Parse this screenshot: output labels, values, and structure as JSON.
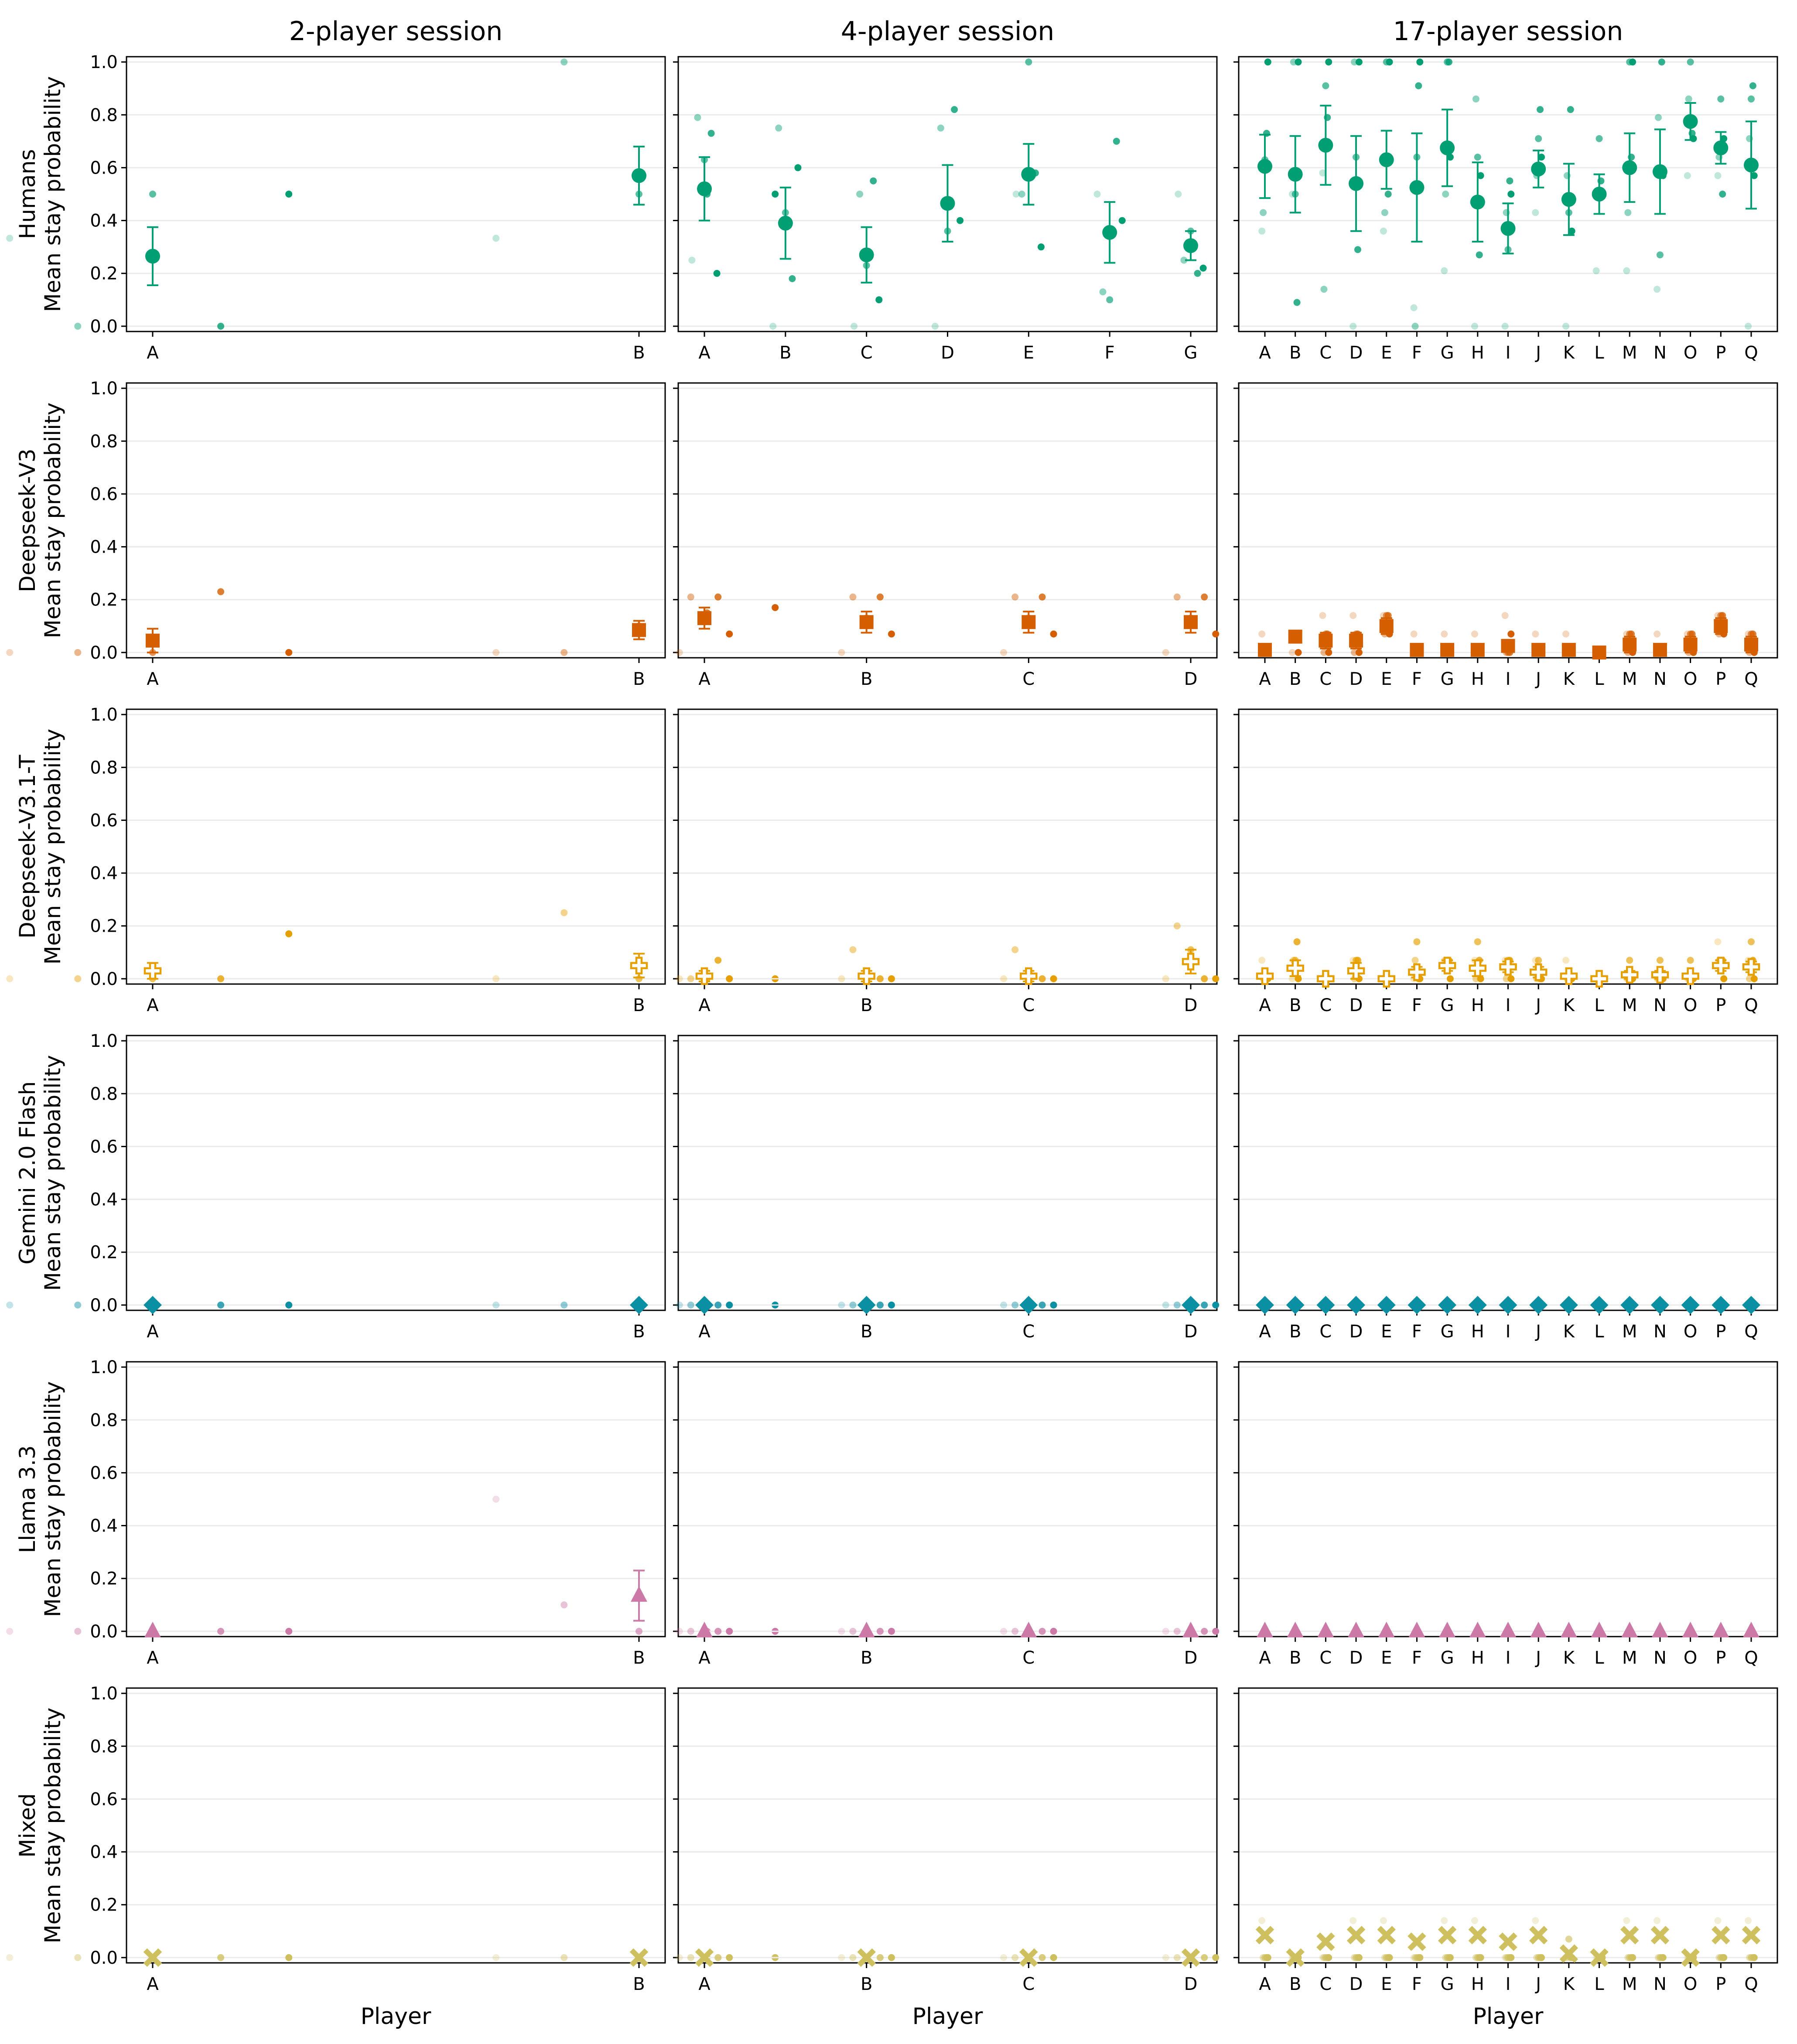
{
  "colors": {
    "Humans": "#009e73",
    "Deepseek-V3": "#d55e00",
    "Deepseek-V3.1-T": "#e69f00",
    "Gemini 2.0 Flash": "#0a8fa3",
    "Llama 3.3": "#cc79a7",
    "Mixed": "#cfc05f",
    "grid": "#ebebeb"
  },
  "chart_data": {
    "type": "scatter",
    "column_titles": [
      "2-player session",
      "4-player session",
      "17-player session"
    ],
    "row_titles": [
      "Humans",
      "Deepseek-V3",
      "Deepseek-V3.1-T",
      "Gemini 2.0 Flash",
      "Llama 3.3",
      "Mixed"
    ],
    "ylabel": "Mean stay probability",
    "xlabel": "Player",
    "ylim": [
      -0.02,
      1.02
    ],
    "yticks": [
      "0.0",
      "0.2",
      "0.4",
      "0.6",
      "0.8",
      "1.0"
    ],
    "grid": "horizontal",
    "markers": {
      "Humans": "circle",
      "Deepseek-V3": "square",
      "Deepseek-V3.1-T": "plus",
      "Gemini 2.0 Flash": "diamond",
      "Llama 3.3": "triangle",
      "Mixed": "x"
    },
    "players": [
      [
        "A",
        "B"
      ],
      [
        "A",
        "B",
        "C",
        "D",
        "E",
        "F",
        "G"
      ],
      [
        "A",
        "B",
        "C",
        "D",
        "E",
        "F",
        "G",
        "H",
        "I",
        "J",
        "K",
        "L",
        "M",
        "N",
        "O",
        "P",
        "Q"
      ]
    ],
    "players_llm": [
      [
        "A",
        "B"
      ],
      [
        "A",
        "B",
        "C",
        "D"
      ],
      [
        "A",
        "B",
        "C",
        "D",
        "E",
        "F",
        "G",
        "H",
        "I",
        "J",
        "K",
        "L",
        "M",
        "N",
        "O",
        "P",
        "Q"
      ]
    ],
    "mean": {
      "Humans": [
        [
          0.265,
          0.57
        ],
        [
          0.52,
          0.39,
          0.27,
          0.465,
          0.575,
          0.355,
          0.305
        ],
        [
          0.605,
          0.575,
          0.685,
          0.54,
          0.63,
          0.525,
          0.675,
          0.47,
          0.37,
          0.595,
          0.48,
          0.5,
          0.6,
          0.585,
          0.775,
          0.675,
          0.61
        ]
      ],
      "Deepseek-V3": [
        [
          0.045,
          0.085
        ],
        [
          0.13,
          0.115,
          0.115,
          0.115
        ],
        [
          0.01,
          0.06,
          0.045,
          0.045,
          0.1,
          0.01,
          0.01,
          0.01,
          0.025,
          0.01,
          0.01,
          0.0,
          0.03,
          0.01,
          0.03,
          0.1,
          0.03
        ]
      ],
      "Deepseek-V3.1-T": [
        [
          0.03,
          0.05
        ],
        [
          0.01,
          0.01,
          0.01,
          0.065
        ],
        [
          0.01,
          0.04,
          0.0,
          0.03,
          0.0,
          0.025,
          0.05,
          0.04,
          0.045,
          0.025,
          0.01,
          0.0,
          0.015,
          0.015,
          0.01,
          0.05,
          0.045
        ]
      ],
      "Gemini 2.0 Flash": [
        [
          0.0,
          0.0
        ],
        [
          0.0,
          0.0,
          0.0,
          0.0
        ],
        [
          0.0,
          0.0,
          0.0,
          0.0,
          0.0,
          0.0,
          0.0,
          0.0,
          0.0,
          0.0,
          0.0,
          0.0,
          0.0,
          0.0,
          0.0,
          0.0,
          0.0
        ]
      ],
      "Llama 3.3": [
        [
          0.0,
          0.135
        ],
        [
          0.0,
          0.0,
          0.0,
          0.0
        ],
        [
          0.0,
          0.0,
          0.0,
          0.0,
          0.0,
          0.0,
          0.0,
          0.0,
          0.0,
          0.0,
          0.0,
          0.0,
          0.0,
          0.0,
          0.0,
          0.0,
          0.0
        ]
      ],
      "Mixed": [
        [
          0.0,
          0.0
        ],
        [
          0.0,
          0.0,
          0.0,
          0.0
        ],
        [
          0.085,
          0.0,
          0.06,
          0.085,
          0.085,
          0.06,
          0.085,
          0.085,
          0.06,
          0.085,
          0.015,
          0.0,
          0.085,
          0.085,
          0.0,
          0.085,
          0.085
        ]
      ]
    },
    "error": {
      "Humans": [
        [
          0.11,
          0.11
        ],
        [
          0.12,
          0.135,
          0.105,
          0.145,
          0.115,
          0.115,
          0.055
        ],
        [
          0.12,
          0.145,
          0.15,
          0.18,
          0.11,
          0.205,
          0.145,
          0.15,
          0.095,
          0.07,
          0.135,
          0.075,
          0.13,
          0.16,
          0.07,
          0.06,
          0.165
        ]
      ],
      "Deepseek-V3": [
        [
          0.045,
          0.035
        ],
        [
          0.04,
          0.04,
          0.04,
          0.04
        ],
        [
          0.01,
          0.0,
          0.03,
          0.03,
          0.03,
          0.01,
          0.01,
          0.01,
          0.015,
          0.01,
          0.01,
          0.0,
          0.03,
          0.01,
          0.03,
          0.03,
          0.03
        ]
      ],
      "Deepseek-V3.1-T": [
        [
          0.03,
          0.045
        ],
        [
          0.02,
          0.02,
          0.02,
          0.045
        ],
        [
          0.01,
          0.03,
          0.0,
          0.03,
          0.0,
          0.02,
          0.02,
          0.03,
          0.02,
          0.02,
          0.01,
          0.0,
          0.015,
          0.015,
          0.01,
          0.02,
          0.02
        ]
      ],
      "Gemini 2.0 Flash": [
        [
          0.0,
          0.0
        ],
        [
          0.0,
          0.0,
          0.0,
          0.0
        ],
        [
          0.0,
          0.0,
          0.0,
          0.0,
          0.0,
          0.0,
          0.0,
          0.0,
          0.0,
          0.0,
          0.0,
          0.0,
          0.0,
          0.0,
          0.0,
          0.0,
          0.0
        ]
      ],
      "Llama 3.3": [
        [
          0.0,
          0.095
        ],
        [
          0.0,
          0.0,
          0.0,
          0.0
        ],
        [
          0.0,
          0.0,
          0.0,
          0.0,
          0.0,
          0.0,
          0.0,
          0.0,
          0.0,
          0.0,
          0.0,
          0.0,
          0.0,
          0.0,
          0.0,
          0.0,
          0.0
        ]
      ],
      "Mixed": [
        [
          0.0,
          0.0
        ],
        [
          0.0,
          0.0,
          0.0,
          0.0
        ],
        [
          0.0,
          0.0,
          0.0,
          0.0,
          0.0,
          0.0,
          0.0,
          0.0,
          0.0,
          0.0,
          0.0,
          0.0,
          0.0,
          0.0,
          0.0,
          0.0,
          0.0
        ]
      ]
    },
    "jitter": [
      [
        -1.05,
        -0.55,
        0.0,
        0.5,
        1.0
      ],
      [
        -0.55,
        -0.3,
        0.0,
        0.3,
        0.55
      ],
      [
        -0.35,
        -0.2,
        0.0,
        0.2,
        0.35
      ]
    ],
    "sessions": {
      "Humans": [
        [
          [
            0.333,
            0.0,
            0.5,
            0.0,
            0.5
          ],
          [
            0.333,
            1.0,
            0.5,
            0.5,
            0.5
          ]
        ],
        [
          [
            0.25,
            0.79,
            0.63,
            0.73,
            0.2
          ],
          [
            0.0,
            0.75,
            0.43,
            0.18,
            0.6
          ],
          [
            0.0,
            0.5,
            0.23,
            0.55,
            0.1
          ],
          [
            0.0,
            0.75,
            0.36,
            0.82,
            0.4
          ],
          [
            0.5,
            0.5,
            1.0,
            0.58,
            0.3
          ],
          [
            0.5,
            0.13,
            0.1,
            0.7,
            0.4
          ],
          [
            0.5,
            0.25,
            0.36,
            0.2,
            0.22
          ]
        ],
        [
          [
            0.36,
            0.43,
            0.63,
            0.73,
            1.0
          ],
          [
            0.5,
            1.0,
            0.5,
            0.09,
            1.0
          ],
          [
            0.58,
            0.14,
            0.91,
            0.79,
            1.0
          ],
          [
            0.0,
            1.0,
            0.64,
            0.29,
            1.0
          ],
          [
            0.36,
            0.43,
            1.0,
            0.5,
            1.0
          ],
          [
            0.07,
            0.0,
            0.64,
            0.91,
            1.0
          ],
          [
            0.21,
            0.5,
            1.0,
            1.0,
            0.64
          ],
          [
            0.0,
            0.86,
            0.64,
            0.27,
            0.57
          ],
          [
            0.0,
            0.43,
            0.29,
            0.55,
            0.5
          ],
          [
            0.43,
            0.57,
            0.71,
            0.82,
            0.64
          ],
          [
            0.0,
            0.57,
            0.43,
            0.82,
            0.36
          ],
          [
            0.21,
            0.5,
            0.71,
            0.55,
            0.5
          ],
          [
            0.21,
            0.43,
            1.0,
            0.64,
            1.0
          ],
          [
            0.14,
            0.79,
            0.27,
            1.0,
            0.57
          ],
          [
            0.57,
            0.86,
            1.0,
            0.73,
            0.71
          ],
          [
            0.57,
            0.64,
            0.86,
            0.5,
            0.71
          ],
          [
            0.0,
            0.71,
            0.86,
            0.91,
            0.57
          ]
        ]
      ],
      "Deepseek-V3": [
        [
          [
            0.0,
            0.0,
            0.0,
            0.23,
            0.0
          ],
          [
            0.0,
            0.0,
            0.1,
            0.15,
            0.17
          ]
        ],
        [
          [
            0.0,
            0.21,
            0.13,
            0.21,
            0.07
          ],
          [
            0.0,
            0.21,
            0.13,
            0.21,
            0.07
          ],
          [
            0.0,
            0.21,
            0.13,
            0.21,
            0.07
          ],
          [
            0.0,
            0.21,
            0.13,
            0.21,
            0.07
          ]
        ],
        [
          [
            0.07,
            0.0,
            0.0,
            0.0,
            0.0
          ],
          [
            0.0,
            0.07,
            0.07,
            0.07,
            0.0
          ],
          [
            0.14,
            0.0,
            0.07,
            0.07,
            0.0
          ],
          [
            0.14,
            0.0,
            0.07,
            0.07,
            0.0
          ],
          [
            0.14,
            0.07,
            0.14,
            0.14,
            0.07
          ],
          [
            0.07,
            0.0,
            0.0,
            0.0,
            0.0
          ],
          [
            0.07,
            0.0,
            0.0,
            0.0,
            0.0
          ],
          [
            0.07,
            0.0,
            0.0,
            0.0,
            0.0
          ],
          [
            0.14,
            0.0,
            0.0,
            0.0,
            0.07
          ],
          [
            0.07,
            0.0,
            0.0,
            0.0,
            0.0
          ],
          [
            0.07,
            0.0,
            0.0,
            0.0,
            0.0
          ],
          [
            0.0,
            0.0,
            0.0,
            0.0,
            0.0
          ],
          [
            0.07,
            0.0,
            0.07,
            0.07,
            0.0
          ],
          [
            0.07,
            0.0,
            0.0,
            0.0,
            0.0
          ],
          [
            0.07,
            0.0,
            0.07,
            0.07,
            0.0
          ],
          [
            0.14,
            0.07,
            0.14,
            0.14,
            0.07
          ],
          [
            0.07,
            0.0,
            0.07,
            0.07,
            0.0
          ]
        ]
      ],
      "Deepseek-V3.1-T": [
        [
          [
            0.0,
            0.0,
            0.0,
            0.0,
            0.17
          ],
          [
            0.0,
            0.25,
            0.0,
            0.0,
            0.0
          ]
        ],
        [
          [
            0.0,
            0.0,
            0.01,
            0.07,
            0.0
          ],
          [
            0.0,
            0.11,
            0.01,
            0.0,
            0.0
          ],
          [
            0.0,
            0.11,
            0.01,
            0.0,
            0.0
          ],
          [
            0.0,
            0.2,
            0.11,
            0.0,
            0.0
          ]
        ],
        [
          [
            0.07,
            0.0,
            0.0,
            0.0,
            0.0
          ],
          [
            0.0,
            0.07,
            0.07,
            0.14,
            0.0
          ],
          [
            0.0,
            0.0,
            0.0,
            0.0,
            0.0
          ],
          [
            0.07,
            0.0,
            0.07,
            0.07,
            0.0
          ],
          [
            0.0,
            0.0,
            0.0,
            0.0,
            0.0
          ],
          [
            0.0,
            0.07,
            0.14,
            0.0,
            0.0
          ],
          [
            0.07,
            0.07,
            0.07,
            0.07,
            0.0
          ],
          [
            0.07,
            0.0,
            0.14,
            0.07,
            0.0
          ],
          [
            0.07,
            0.0,
            0.07,
            0.07,
            0.0
          ],
          [
            0.07,
            0.0,
            0.07,
            0.0,
            0.0
          ],
          [
            0.07,
            0.0,
            0.0,
            0.0,
            0.0
          ],
          [
            0.0,
            0.0,
            0.0,
            0.0,
            0.0
          ],
          [
            0.0,
            0.0,
            0.07,
            0.0,
            0.0
          ],
          [
            0.0,
            0.0,
            0.07,
            0.0,
            0.0
          ],
          [
            0.0,
            0.0,
            0.07,
            0.0,
            0.0
          ],
          [
            0.14,
            0.07,
            0.07,
            0.07,
            0.0
          ],
          [
            0.07,
            0.0,
            0.14,
            0.07,
            0.0
          ]
        ]
      ],
      "Gemini 2.0 Flash": [
        [
          [
            0.0,
            0.0,
            0.0,
            0.0,
            0.0
          ],
          [
            0.0,
            0.0,
            0.0,
            0.0,
            0.0
          ]
        ],
        [
          [
            0.0,
            0.0,
            0.0,
            0.0,
            0.0
          ],
          [
            0.0,
            0.0,
            0.0,
            0.0,
            0.0
          ],
          [
            0.0,
            0.0,
            0.0,
            0.0,
            0.0
          ],
          [
            0.0,
            0.0,
            0.0,
            0.0,
            0.0
          ]
        ],
        []
      ],
      "Llama 3.3": [
        [
          [
            0.0,
            0.0,
            0.0,
            0.0,
            0.0
          ],
          [
            0.5,
            0.1,
            0.0,
            0.0,
            0.0
          ]
        ],
        [
          [
            0.0,
            0.0,
            0.0,
            0.0,
            0.0
          ],
          [
            0.0,
            0.0,
            0.0,
            0.0,
            0.0
          ],
          [
            0.0,
            0.0,
            0.0,
            0.0,
            0.0
          ],
          [
            0.0,
            0.0,
            0.0,
            0.0,
            0.0
          ]
        ],
        []
      ],
      "Mixed": [
        [
          [
            0.0,
            0.0,
            0.0,
            0.0,
            0.0
          ],
          [
            0.0,
            0.0,
            0.0,
            0.0,
            0.0
          ]
        ],
        [
          [
            0.0,
            0.0,
            0.0,
            0.0,
            0.0
          ],
          [
            0.0,
            0.0,
            0.0,
            0.0,
            0.0
          ],
          [
            0.0,
            0.0,
            0.0,
            0.0,
            0.0
          ],
          [
            0.0,
            0.0,
            0.0,
            0.0,
            0.0
          ]
        ],
        [
          [
            0.14,
            0.0,
            0.0,
            0.0,
            0.0
          ],
          [
            0.0,
            0.0,
            0.0,
            0.0,
            0.0
          ],
          [
            0.0,
            0.0,
            0.0,
            0.0,
            0.0
          ],
          [
            0.14,
            0.0,
            0.0,
            0.0,
            0.0
          ],
          [
            0.14,
            0.0,
            0.0,
            0.0,
            0.0
          ],
          [
            0.0,
            0.0,
            0.0,
            0.0,
            0.0
          ],
          [
            0.14,
            0.0,
            0.0,
            0.0,
            0.0
          ],
          [
            0.14,
            0.0,
            0.0,
            0.0,
            0.0
          ],
          [
            0.0,
            0.0,
            0.0,
            0.0,
            0.0
          ],
          [
            0.14,
            0.0,
            0.0,
            0.0,
            0.0
          ],
          [
            0.0,
            0.0,
            0.07,
            0.0,
            0.0
          ],
          [
            0.0,
            0.0,
            0.0,
            0.0,
            0.0
          ],
          [
            0.14,
            0.0,
            0.0,
            0.0,
            0.0
          ],
          [
            0.14,
            0.0,
            0.0,
            0.0,
            0.0
          ],
          [
            0.0,
            0.0,
            0.0,
            0.0,
            0.0
          ],
          [
            0.14,
            0.0,
            0.0,
            0.0,
            0.0
          ],
          [
            0.14,
            0.0,
            0.0,
            0.0,
            0.0
          ]
        ]
      ]
    }
  }
}
